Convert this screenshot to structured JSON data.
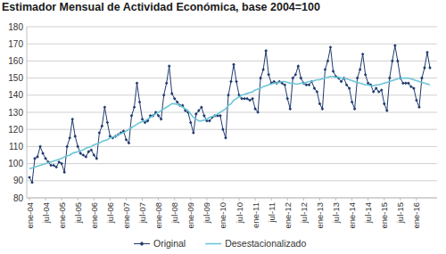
{
  "chart_data": {
    "type": "line",
    "title": "Estimador Mensual de Actividad Económica, base 2004=100",
    "categories": [
      "ene-04",
      null,
      null,
      null,
      null,
      null,
      "jul-04",
      null,
      null,
      null,
      null,
      null,
      "ene-05",
      null,
      null,
      null,
      null,
      null,
      "jul-05",
      null,
      null,
      null,
      null,
      null,
      "ene-06",
      null,
      null,
      null,
      null,
      null,
      "jul-06",
      null,
      null,
      null,
      null,
      null,
      "ene-07",
      null,
      null,
      null,
      null,
      null,
      "jul-07",
      null,
      null,
      null,
      null,
      null,
      "ene-08",
      null,
      null,
      null,
      null,
      null,
      "jul-08",
      null,
      null,
      null,
      null,
      null,
      "ene-09",
      null,
      null,
      null,
      null,
      null,
      "jul-09",
      null,
      null,
      null,
      null,
      null,
      "ene-10",
      null,
      null,
      null,
      null,
      null,
      "jul-10",
      null,
      null,
      null,
      null,
      null,
      "ene-11",
      null,
      null,
      null,
      null,
      null,
      "jul-11",
      null,
      null,
      null,
      null,
      null,
      "ene-12",
      null,
      null,
      null,
      null,
      null,
      "jul-12",
      null,
      null,
      null,
      null,
      null,
      "ene-13",
      null,
      null,
      null,
      null,
      null,
      "jul-13",
      null,
      null,
      null,
      null,
      null,
      "ene-14",
      null,
      null,
      null,
      null,
      null,
      "jul-14",
      null,
      null,
      null,
      null,
      null,
      "ene-15",
      null,
      null,
      null,
      null,
      null,
      "jul-15",
      null,
      null,
      null,
      null,
      null,
      "ene-16",
      null,
      null,
      null,
      null,
      null
    ],
    "series": [
      {
        "name": "Original",
        "color": "#1f3a6e",
        "marker": "diamond",
        "line_style": "solid",
        "values": [
          92,
          89,
          103,
          104,
          110,
          106,
          103,
          101,
          99,
          99,
          98,
          101,
          100,
          95,
          110,
          115,
          126,
          116,
          110,
          106,
          105,
          104,
          107,
          108,
          105,
          103,
          118,
          122,
          133,
          124,
          116,
          115,
          116,
          117,
          118,
          119,
          114,
          112,
          128,
          133,
          147,
          136,
          126,
          124,
          125,
          128,
          128,
          130,
          128,
          126,
          140,
          147,
          157,
          141,
          138,
          136,
          134,
          134,
          131,
          130,
          124,
          118,
          129,
          131,
          133,
          128,
          125,
          125,
          127,
          128,
          128,
          128,
          120,
          115,
          140,
          148,
          158,
          148,
          140,
          138,
          138,
          138,
          137,
          138,
          132,
          130,
          150,
          155,
          166,
          152,
          147,
          148,
          147,
          148,
          147,
          146,
          138,
          132,
          150,
          152,
          157,
          150,
          147,
          146,
          146,
          148,
          144,
          142,
          135,
          132,
          155,
          160,
          168,
          154,
          151,
          150,
          148,
          150,
          146,
          144,
          136,
          132,
          150,
          155,
          164,
          152,
          147,
          146,
          142,
          144,
          142,
          143,
          135,
          131,
          150,
          160,
          169,
          160,
          150,
          147,
          147,
          147,
          145,
          144,
          137,
          133,
          150,
          156,
          165,
          156
        ]
      },
      {
        "name": "Desestacionalizado",
        "color": "#6cc6d8",
        "marker": "none",
        "line_style": "solid",
        "values": [
          97,
          97.5,
          98,
          98.5,
          99,
          99.5,
          100,
          100.5,
          101,
          101.5,
          102,
          102.5,
          103,
          104,
          104.5,
          105,
          106,
          106.5,
          107,
          107.5,
          108,
          109,
          109.5,
          110,
          111,
          111.5,
          112,
          113,
          113.5,
          114,
          115,
          115.5,
          116,
          117,
          117.5,
          118,
          119,
          120,
          121,
          122,
          123,
          124,
          124.5,
          125,
          126,
          127,
          128,
          129,
          130,
          131,
          132,
          133,
          134,
          135,
          135,
          134.5,
          134,
          133,
          132,
          131,
          129,
          127,
          126,
          125,
          125,
          125.5,
          126,
          127,
          127.5,
          128,
          129,
          130,
          131,
          132,
          134,
          135,
          137,
          138,
          139,
          140,
          140.5,
          141,
          141.5,
          142,
          143,
          143.5,
          144,
          145,
          145.5,
          146,
          146.5,
          147,
          147,
          147.5,
          148,
          148,
          147.5,
          147,
          147,
          146.5,
          146.5,
          147,
          147,
          147.5,
          148,
          148,
          148.5,
          149,
          149,
          149.5,
          150,
          150.5,
          151,
          151,
          150.5,
          150.5,
          150,
          150,
          149.5,
          149,
          148.5,
          148,
          147.5,
          147,
          146.5,
          146,
          146,
          145.5,
          145.5,
          146,
          146,
          146.5,
          147,
          147.5,
          148,
          148.5,
          149,
          149.5,
          150,
          150,
          150,
          150,
          149.5,
          149,
          148.5,
          148,
          147.5,
          147,
          146.5,
          146
        ]
      }
    ],
    "ylim": [
      80,
      180
    ],
    "yticks": [
      80,
      90,
      100,
      110,
      120,
      130,
      140,
      150,
      160,
      170,
      180
    ],
    "grid": true,
    "legend": "bottom"
  }
}
